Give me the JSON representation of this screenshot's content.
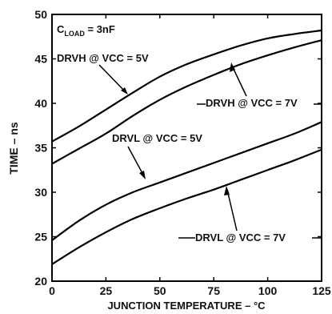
{
  "chart_data": {
    "type": "line",
    "xlabel": "JUNCTION TEMPERATURE – °C",
    "ylabel": "TIME – ns",
    "xlim": [
      0,
      125
    ],
    "ylim": [
      20,
      50
    ],
    "x_ticks": [
      0,
      25,
      50,
      75,
      100,
      125
    ],
    "y_ticks": [
      20,
      25,
      30,
      35,
      40,
      45,
      50
    ],
    "grid": false,
    "condition": {
      "prefix": "C",
      "subscript": "LOAD",
      "suffix": " = 3nF"
    },
    "series": [
      {
        "name": "DRVH @ VCC = 5V",
        "x": [
          0,
          12.5,
          25,
          37.5,
          50,
          62.5,
          75,
          87.5,
          100,
          112.5,
          125
        ],
        "y": [
          35.7,
          37.4,
          39.3,
          41.2,
          43.0,
          44.4,
          45.5,
          46.5,
          47.3,
          47.8,
          48.2
        ]
      },
      {
        "name": "DRVH @ VCC = 7V",
        "x": [
          0,
          12.5,
          25,
          37.5,
          50,
          62.5,
          75,
          87.5,
          100,
          112.5,
          125
        ],
        "y": [
          33.2,
          34.9,
          36.6,
          38.6,
          40.4,
          41.9,
          43.2,
          44.4,
          45.4,
          46.3,
          47.1
        ]
      },
      {
        "name": "DRVL @ VCC = 5V",
        "x": [
          0,
          12.5,
          25,
          37.5,
          50,
          62.5,
          75,
          87.5,
          100,
          112.5,
          125
        ],
        "y": [
          24.6,
          26.8,
          28.6,
          30.0,
          31.1,
          32.2,
          33.3,
          34.4,
          35.5,
          36.6,
          37.9
        ]
      },
      {
        "name": "DRVL @ VCC = 7V",
        "x": [
          0,
          12.5,
          25,
          37.5,
          50,
          62.5,
          75,
          87.5,
          100,
          112.5,
          125
        ],
        "y": [
          21.9,
          23.8,
          25.5,
          27.0,
          28.2,
          29.3,
          30.3,
          31.4,
          32.5,
          33.6,
          34.8
        ]
      }
    ]
  }
}
